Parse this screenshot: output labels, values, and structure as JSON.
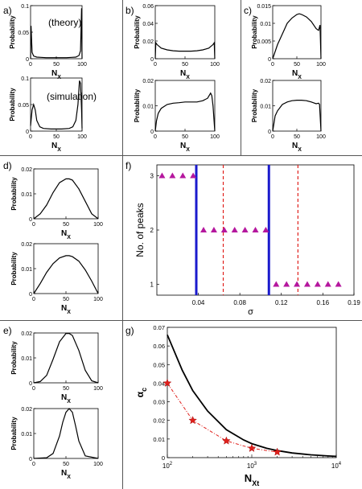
{
  "chart_data": [
    {
      "panel": "a",
      "type": "line",
      "label": "a)",
      "annotation": "(theory)",
      "xlabel": "N_X",
      "ylabel": "Probability",
      "xlim": [
        0,
        100
      ],
      "ylim": [
        0,
        0.1
      ],
      "xticks": [
        0,
        50,
        100
      ],
      "yticks": [
        0,
        0.05,
        0.1
      ],
      "ytick_labels": [
        "0",
        "0.05",
        "0.1"
      ],
      "x": [
        0,
        1,
        3,
        6,
        12,
        20,
        30,
        40,
        50,
        60,
        70,
        80,
        88,
        94,
        97,
        99,
        100
      ],
      "y": [
        0,
        0.062,
        0.012,
        0.005,
        0.003,
        0.0025,
        0.002,
        0.002,
        0.002,
        0.002,
        0.002,
        0.0025,
        0.003,
        0.006,
        0.015,
        0.095,
        0
      ]
    },
    {
      "panel": "a",
      "type": "line",
      "annotation": "(simulation)",
      "xlabel": "N_X",
      "ylabel": "Probability",
      "xlim": [
        0,
        100
      ],
      "ylim": [
        0,
        0.1
      ],
      "xticks": [
        0,
        50,
        100
      ],
      "yticks": [
        0,
        0.05,
        0.1
      ],
      "ytick_labels": [
        "0",
        "0.05",
        "0.1"
      ],
      "x": [
        0,
        3,
        6,
        9,
        12,
        18,
        25,
        40,
        50,
        60,
        75,
        82,
        88,
        92,
        95,
        97,
        99,
        100
      ],
      "y": [
        0.01,
        0.04,
        0.05,
        0.04,
        0.02,
        0.008,
        0.005,
        0.004,
        0.004,
        0.004,
        0.005,
        0.008,
        0.02,
        0.05,
        0.095,
        0.09,
        0.04,
        0.005
      ]
    },
    {
      "panel": "b",
      "type": "line",
      "label": "b)",
      "xlabel": "N_X",
      "ylabel": "Probability",
      "xlim": [
        0,
        100
      ],
      "ylim": [
        0,
        0.06
      ],
      "xticks": [
        0,
        50,
        100
      ],
      "yticks": [
        0,
        0.02,
        0.04,
        0.06
      ],
      "ytick_labels": [
        "0",
        "0.02",
        "0.04",
        "0.06"
      ],
      "x": [
        0,
        1,
        3,
        10,
        20,
        30,
        40,
        50,
        60,
        70,
        80,
        90,
        97,
        99,
        100
      ],
      "y": [
        0,
        0.018,
        0.016,
        0.012,
        0.01,
        0.009,
        0.0085,
        0.0085,
        0.0085,
        0.009,
        0.01,
        0.012,
        0.016,
        0.018,
        0
      ]
    },
    {
      "panel": "b",
      "type": "line",
      "xlabel": "N_X",
      "ylabel": "Probability",
      "xlim": [
        0,
        100
      ],
      "ylim": [
        0,
        0.02
      ],
      "xticks": [
        0,
        50,
        100
      ],
      "yticks": [
        0,
        0.01,
        0.02
      ],
      "ytick_labels": [
        "0",
        "0.01",
        "0.02"
      ],
      "x": [
        0,
        2,
        5,
        10,
        20,
        30,
        40,
        50,
        60,
        70,
        80,
        88,
        93,
        95,
        97,
        100
      ],
      "y": [
        0,
        0.004,
        0.007,
        0.009,
        0.0105,
        0.011,
        0.0112,
        0.0115,
        0.0115,
        0.0115,
        0.012,
        0.013,
        0.015,
        0.014,
        0.01,
        0
      ]
    },
    {
      "panel": "c",
      "type": "line",
      "label": "c)",
      "xlabel": "N_X",
      "ylabel": "Probability",
      "xlim": [
        0,
        100
      ],
      "ylim": [
        0,
        0.015
      ],
      "xticks": [
        0,
        50,
        100
      ],
      "yticks": [
        0,
        0.005,
        0.01,
        0.015
      ],
      "ytick_labels": [
        "0",
        "0.005",
        "0.01",
        "0.015"
      ],
      "x": [
        0,
        10,
        20,
        30,
        40,
        50,
        55,
        60,
        70,
        80,
        90,
        95,
        98,
        100
      ],
      "y": [
        0,
        0.004,
        0.007,
        0.01,
        0.0115,
        0.0125,
        0.0127,
        0.0125,
        0.0118,
        0.0105,
        0.0085,
        0.008,
        0.0095,
        0
      ]
    },
    {
      "panel": "c",
      "type": "line",
      "xlabel": "N_X",
      "ylabel": "Probability",
      "xlim": [
        0,
        100
      ],
      "ylim": [
        0,
        0.02
      ],
      "xticks": [
        0,
        50,
        100
      ],
      "yticks": [
        0,
        0.01,
        0.02
      ],
      "ytick_labels": [
        "0",
        "0.01",
        "0.02"
      ],
      "x": [
        0,
        5,
        10,
        20,
        30,
        40,
        50,
        60,
        70,
        80,
        90,
        95,
        97,
        100
      ],
      "y": [
        0,
        0.006,
        0.008,
        0.0105,
        0.0115,
        0.012,
        0.0122,
        0.0122,
        0.012,
        0.0115,
        0.0108,
        0.011,
        0.0105,
        0
      ]
    },
    {
      "panel": "d",
      "type": "line",
      "label": "d)",
      "xlabel": "N_X",
      "ylabel": "Probability",
      "xlim": [
        0,
        100
      ],
      "ylim": [
        0,
        0.02
      ],
      "xticks": [
        0,
        50,
        100
      ],
      "yticks": [
        0,
        0.01,
        0.02
      ],
      "ytick_labels": [
        "0",
        "0.01",
        "0.02"
      ],
      "x": [
        0,
        10,
        20,
        30,
        40,
        50,
        55,
        60,
        70,
        80,
        90,
        100
      ],
      "y": [
        0,
        0.002,
        0.0055,
        0.0105,
        0.0145,
        0.016,
        0.016,
        0.0155,
        0.012,
        0.007,
        0.002,
        0
      ]
    },
    {
      "panel": "d",
      "type": "line",
      "xlabel": "N_X",
      "ylabel": "Probability",
      "xlim": [
        0,
        100
      ],
      "ylim": [
        0,
        0.02
      ],
      "xticks": [
        0,
        50,
        100
      ],
      "yticks": [
        0,
        0.01,
        0.02
      ],
      "ytick_labels": [
        "0",
        "0.01",
        "0.02"
      ],
      "x": [
        0,
        10,
        20,
        30,
        40,
        50,
        55,
        60,
        70,
        80,
        90,
        100
      ],
      "y": [
        0,
        0.004,
        0.0085,
        0.012,
        0.0143,
        0.0152,
        0.0152,
        0.0148,
        0.013,
        0.0095,
        0.005,
        0
      ]
    },
    {
      "panel": "e",
      "type": "line",
      "label": "e)",
      "xlabel": "N_X",
      "ylabel": "Probability",
      "xlim": [
        0,
        100
      ],
      "ylim": [
        0,
        0.02
      ],
      "xticks": [
        0,
        50,
        100
      ],
      "yticks": [
        0,
        0.01,
        0.02
      ],
      "ytick_labels": [
        "0",
        "0.01",
        "0.02"
      ],
      "x": [
        0,
        10,
        20,
        30,
        40,
        50,
        55,
        60,
        70,
        80,
        90,
        100
      ],
      "y": [
        0,
        0.0005,
        0.003,
        0.0095,
        0.0165,
        0.0198,
        0.0198,
        0.019,
        0.013,
        0.005,
        0.0008,
        0
      ]
    },
    {
      "panel": "e",
      "type": "line",
      "xlabel": "N_X",
      "ylabel": "Probability",
      "xlim": [
        0,
        100
      ],
      "ylim": [
        0,
        0.02
      ],
      "xticks": [
        0,
        50,
        100
      ],
      "yticks": [
        0,
        0.01,
        0.02
      ],
      "ytick_labels": [
        "0",
        "0.01",
        "0.02"
      ],
      "x": [
        0,
        20,
        30,
        40,
        45,
        50,
        55,
        60,
        65,
        70,
        80,
        100
      ],
      "y": [
        0,
        0.0003,
        0.002,
        0.009,
        0.0145,
        0.0185,
        0.02,
        0.0185,
        0.013,
        0.007,
        0.001,
        0
      ]
    },
    {
      "panel": "f",
      "type": "scatter",
      "label": "f)",
      "xlabel": "σ",
      "ylabel": "No. of peaks",
      "xlim": [
        0,
        0.19
      ],
      "ylim": [
        0.8,
        3.2
      ],
      "xticks": [
        0.04,
        0.08,
        0.12,
        0.16,
        0.19
      ],
      "xtick_labels": [
        "0.04",
        "0.08",
        "0.12",
        "0.16",
        "0.19"
      ],
      "yticks": [
        1,
        2,
        3
      ],
      "ytick_labels": [
        "1",
        "2",
        "3"
      ],
      "series": [
        {
          "color": "#b5179e",
          "marker": "triangle",
          "x": [
            0.005,
            0.015,
            0.025,
            0.035,
            0.045,
            0.055,
            0.065,
            0.075,
            0.085,
            0.095,
            0.105,
            0.115,
            0.125,
            0.135,
            0.145,
            0.155,
            0.165,
            0.175
          ],
          "y": [
            3,
            3,
            3,
            3,
            2,
            2,
            2,
            2,
            2,
            2,
            2,
            1,
            1,
            1,
            1,
            1,
            1,
            1
          ]
        }
      ],
      "vlines_solid": [
        0.038,
        0.108
      ],
      "vlines_dashed": [
        0.064,
        0.136
      ],
      "solid_color": "#1a1acd",
      "dashed_color": "#e0201c"
    },
    {
      "panel": "g",
      "type": "line",
      "label": "g)",
      "xlabel": "N_Xt",
      "ylabel": "α_c",
      "xscale": "log",
      "xlim": [
        100,
        10000
      ],
      "ylim": [
        0,
        0.07
      ],
      "yticks": [
        0,
        0.01,
        0.02,
        0.03,
        0.04,
        0.05,
        0.06,
        0.07
      ],
      "ytick_labels": [
        "0",
        "0.01",
        "0.02",
        "0.03",
        "0.04",
        "0.05",
        "0.06",
        "0.07"
      ],
      "xticks": [
        100,
        1000,
        10000
      ],
      "series": [
        {
          "style": "solid",
          "color": "#000000",
          "x": [
            100,
            150,
            200,
            300,
            500,
            800,
            1000,
            1500,
            2000,
            3000,
            5000,
            8000,
            10000
          ],
          "y": [
            0.066,
            0.047,
            0.036,
            0.025,
            0.015,
            0.0095,
            0.0075,
            0.005,
            0.0038,
            0.0025,
            0.0015,
            0.0009,
            0.0007
          ]
        },
        {
          "style": "dashdot",
          "color": "#e0201c",
          "marker": "star",
          "x": [
            100,
            200,
            500,
            1000,
            2000
          ],
          "y": [
            0.04,
            0.02,
            0.009,
            0.005,
            0.003
          ]
        }
      ]
    }
  ],
  "labels": {
    "a": "a)",
    "b": "b)",
    "c": "c)",
    "d": "d)",
    "e": "e)",
    "f": "f)",
    "g": "g)",
    "theory": "(theory)",
    "simulation": "(simulation)",
    "probability": "Probability",
    "nx_main": "N",
    "nx_sub": "X",
    "sigma": "σ",
    "peaks": "No. of peaks",
    "alpha_main": "α",
    "alpha_sub": "c",
    "nxt_main": "N",
    "nxt_sub": "Xt",
    "ten": "10",
    "exp2": "2",
    "exp3": "3",
    "exp4": "4"
  }
}
